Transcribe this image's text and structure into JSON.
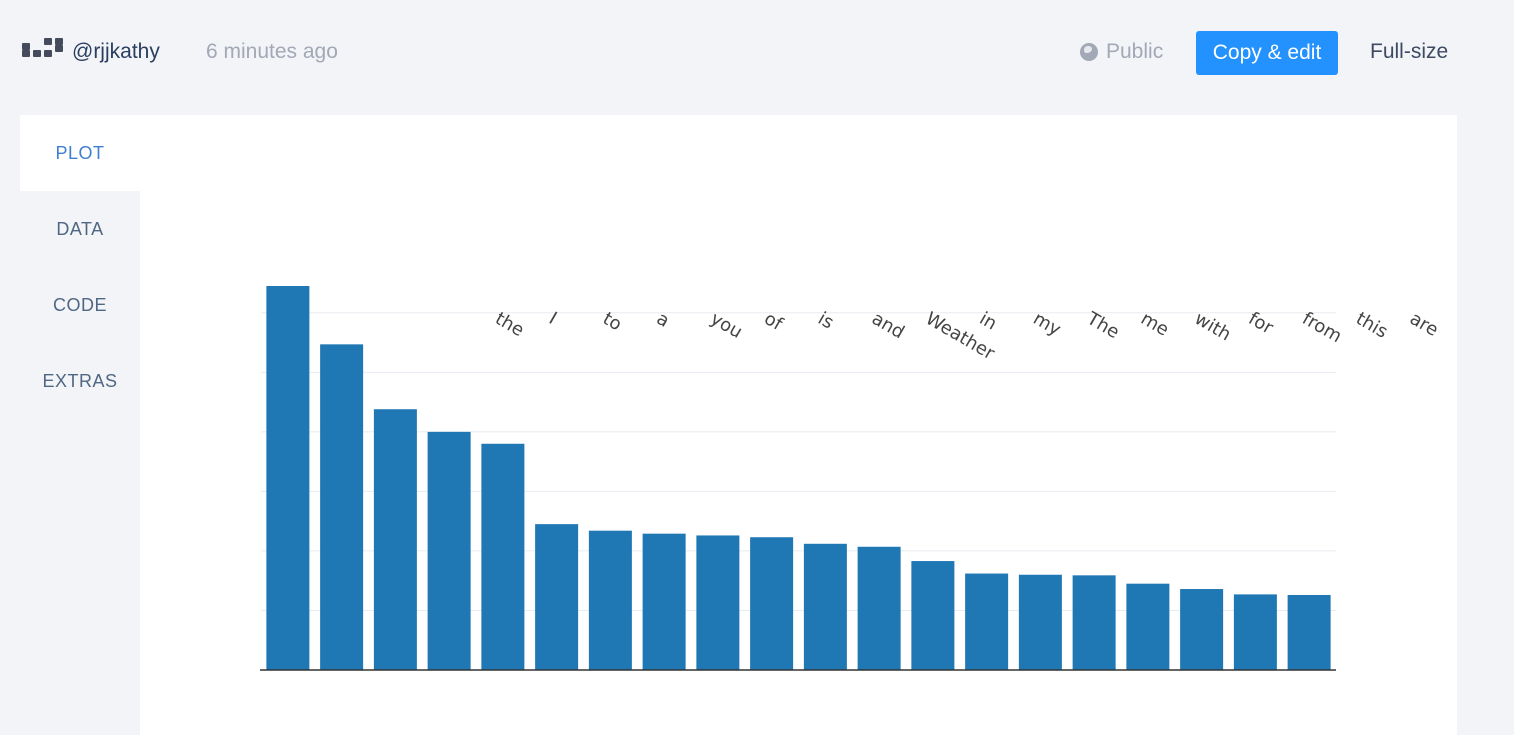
{
  "header": {
    "username": "@rjjkathy",
    "timestamp": "6 minutes ago",
    "visibility": "Public",
    "copy_edit_label": "Copy & edit",
    "fullsize_label": "Full-size"
  },
  "tabs": [
    {
      "label": "PLOT",
      "active": true
    },
    {
      "label": "DATA",
      "active": false
    },
    {
      "label": "CODE",
      "active": false
    },
    {
      "label": "EXTRAS",
      "active": false
    }
  ],
  "colors": {
    "accent": "#2391fe",
    "bar": "#1f77b4",
    "active_tab": "#3d7fd3"
  },
  "icons": {
    "logo": "plotly-logo-icon",
    "visibility": "globe-icon"
  },
  "chart_data": {
    "type": "bar",
    "categories": [
      "the",
      "I",
      "to",
      "a",
      "you",
      "of",
      "is",
      "and",
      "Weather",
      "in",
      "my",
      "The",
      "me",
      "with",
      "for",
      "from",
      "this",
      "are",
      "",
      ""
    ],
    "values": [
      6450,
      5470,
      4380,
      4000,
      3800,
      2450,
      2340,
      2290,
      2260,
      2230,
      2120,
      2070,
      1830,
      1620,
      1600,
      1590,
      1450,
      1360,
      1270,
      1260
    ],
    "ylim": [
      0,
      6450
    ],
    "grid": true,
    "tick_label_angle": 30
  }
}
